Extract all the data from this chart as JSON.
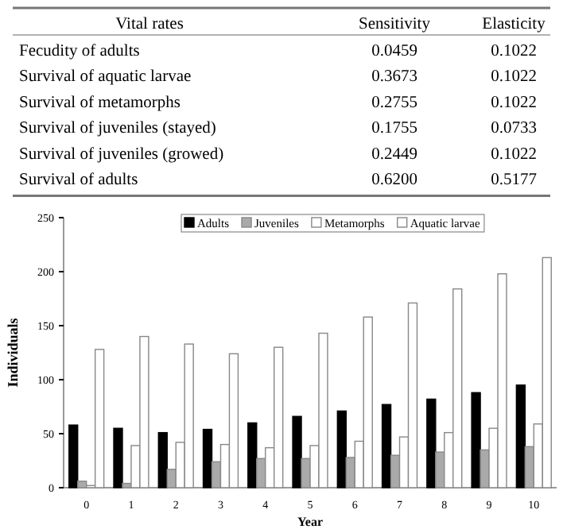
{
  "chart_data": [
    {
      "type": "other",
      "categories": [
        "Vital rates",
        "Sensitivity",
        "Elasticity"
      ],
      "y_categories": [
        "Fecudity of adults",
        "Survival of aquatic larvae",
        "Survival of metamorphs",
        "Survival of juveniles (stayed)",
        "Survival of juveniles (growed)",
        "Survival of adults"
      ],
      "cell_labels": [
        [
          "0.0459",
          "0.1022"
        ],
        [
          "0.3673",
          "0.1022"
        ],
        [
          "0.2755",
          "0.1022"
        ],
        [
          "0.1755",
          "0.0733"
        ],
        [
          "0.2449",
          "0.1022"
        ],
        [
          "0.6200",
          "0.5177"
        ]
      ]
    },
    {
      "type": "bar",
      "xlabel": "Year",
      "ylabel": "Individuals",
      "categories": [
        "0",
        "1",
        "2",
        "3",
        "4",
        "5",
        "6",
        "7",
        "8",
        "9",
        "10"
      ],
      "series": [
        {
          "name": "Adults",
          "color": "#000000",
          "values": [
            58,
            55,
            51,
            54,
            60,
            66,
            71,
            77,
            82,
            88,
            95
          ]
        },
        {
          "name": "Juveniles",
          "color": "#aaaaaa",
          "values": [
            6,
            4,
            17,
            24,
            27,
            27,
            28,
            30,
            33,
            35,
            38
          ]
        },
        {
          "name": "Metamorphs",
          "color": "#ffffff",
          "values": [
            2,
            39,
            42,
            40,
            37,
            39,
            43,
            47,
            51,
            55,
            59
          ]
        },
        {
          "name": "Aquatic larvae",
          "color": "#ffffff",
          "values": [
            128,
            140,
            133,
            124,
            130,
            143,
            158,
            171,
            184,
            198,
            213
          ]
        }
      ],
      "ylim": [
        0,
        250
      ],
      "yticks": [
        0,
        50,
        100,
        150,
        200,
        250
      ],
      "legend": "top",
      "grid": false
    }
  ]
}
